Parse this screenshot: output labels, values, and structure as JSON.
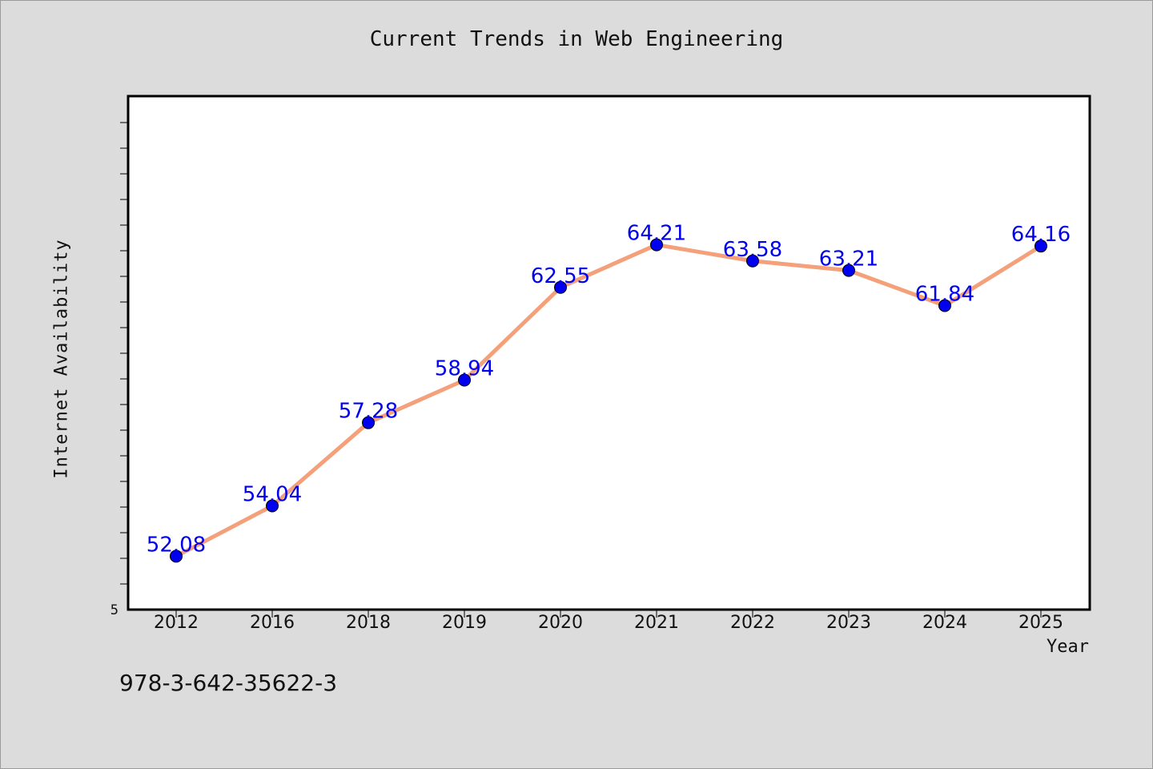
{
  "chart_data": {
    "type": "line",
    "title": "Current Trends in Web Engineering",
    "xlabel": "Year",
    "ylabel": "Internet Availability",
    "categories": [
      "2012",
      "2016",
      "2018",
      "2019",
      "2020",
      "2021",
      "2022",
      "2023",
      "2024",
      "2025"
    ],
    "series": [
      {
        "values": [
          52.08,
          54.04,
          57.28,
          58.94,
          62.55,
          64.21,
          63.58,
          63.21,
          61.84,
          64.16
        ],
        "line_color": "#f4a07a",
        "marker_color": "#0000ee"
      }
    ],
    "data_labels": [
      "52.08",
      "54.04",
      "57.28",
      "58.94",
      "62.55",
      "64.21",
      "63.58",
      "63.21",
      "61.84",
      "64.16"
    ],
    "ylim": [
      50,
      70
    ],
    "y_tick_labels": [
      "5"
    ],
    "grid": false,
    "legend": "none",
    "label_color": "#0000ee",
    "background": "#dcdcdc",
    "plot_background": "#ffffff"
  },
  "footer": {
    "isbn": "978-3-642-35622-3"
  }
}
